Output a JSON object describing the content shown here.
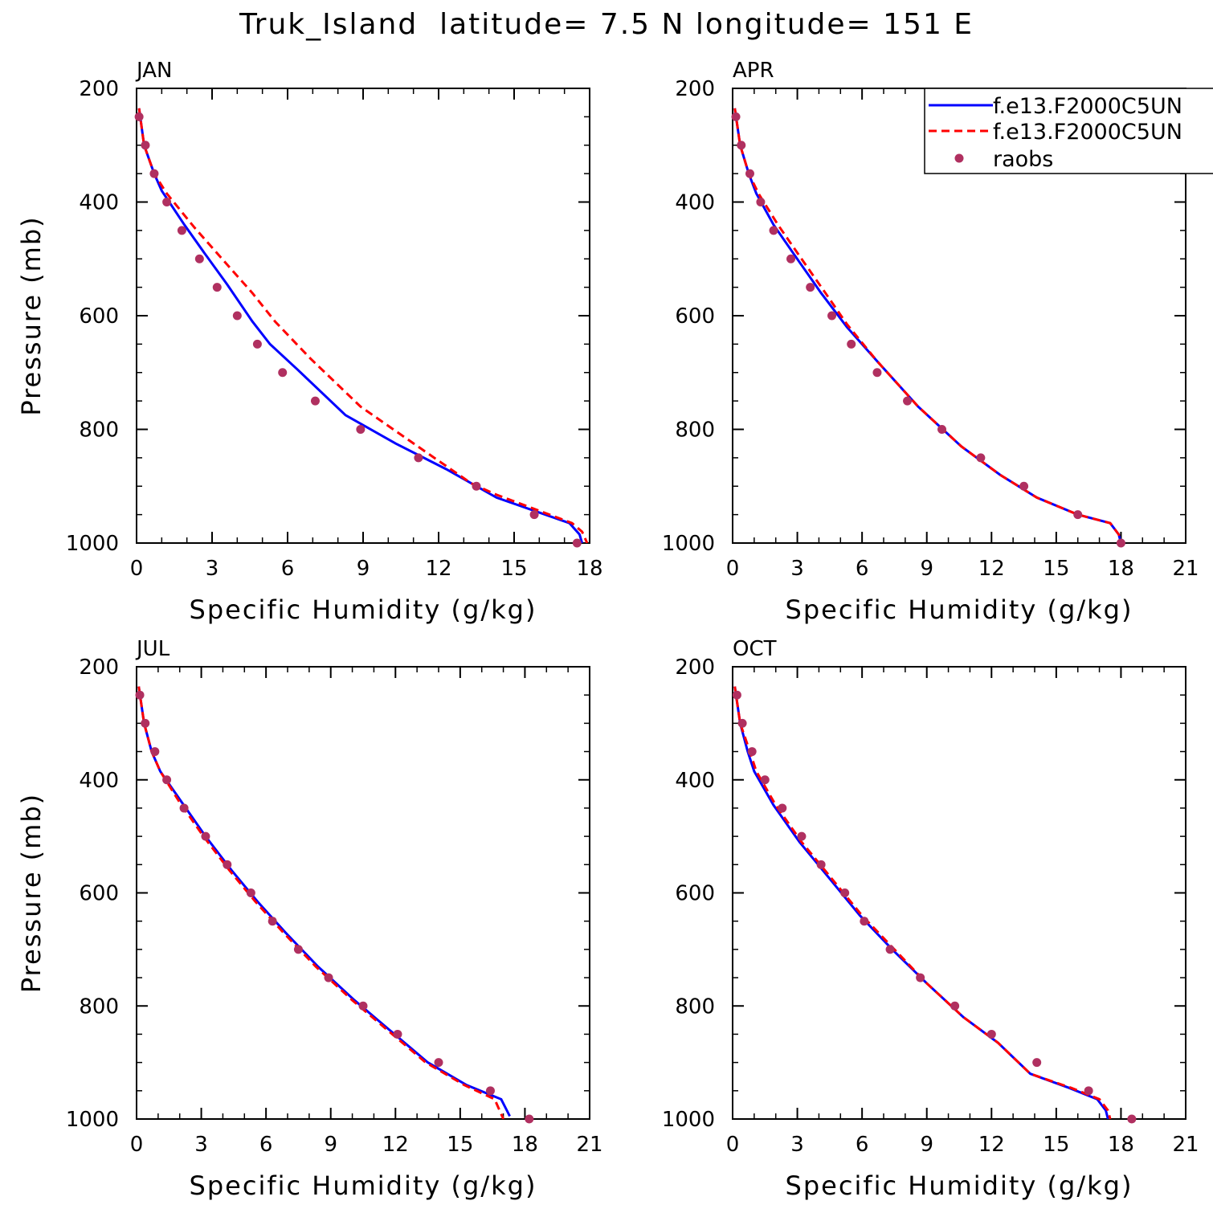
{
  "title": "Truk_Island  latitude= 7.5 N longitude= 151 E",
  "legend": [
    {
      "label": "f.e13.F2000C5UN",
      "color": "#0000ff",
      "style": "solid"
    },
    {
      "label": "f.e13.F2000C5UN",
      "color": "#ff0000",
      "style": "dashed"
    },
    {
      "label": "raobs",
      "color": "#b03060",
      "style": "marker"
    }
  ],
  "colors": {
    "model_solid": "#0000ff",
    "model_dashed": "#ff0000",
    "obs": "#b03060"
  },
  "chart_data": [
    {
      "type": "line",
      "panel": "JAN",
      "xlabel": "Specific Humidity (g/kg)",
      "ylabel": "Pressure (mb)",
      "xlim": [
        0,
        18
      ],
      "ylim": [
        1000,
        200
      ],
      "xticks": [
        0,
        3,
        6,
        9,
        12,
        15,
        18
      ],
      "yticks": [
        200,
        400,
        600,
        800,
        1000
      ],
      "series": [
        {
          "name": "f.e13.F2000C5UN",
          "style": "solid",
          "x": [
            0.1,
            0.3,
            0.7,
            1.0,
            1.9,
            2.7,
            3.6,
            4.6,
            5.3,
            6.4,
            8.3,
            10.3,
            12.3,
            14.3,
            17.2,
            17.6,
            17.7
          ],
          "y": [
            235,
            300,
            350,
            380,
            440,
            490,
            545,
            610,
            650,
            695,
            775,
            825,
            870,
            920,
            965,
            985,
            1000
          ]
        },
        {
          "name": "f.e13.F2000C5UN",
          "style": "dashed",
          "x": [
            0.1,
            0.3,
            0.7,
            1.2,
            2.3,
            3.7,
            4.6,
            5.5,
            6.9,
            8.9,
            11.5,
            13.3,
            14.3,
            17.3,
            17.7,
            17.9
          ],
          "y": [
            235,
            300,
            350,
            385,
            445,
            515,
            560,
            610,
            675,
            760,
            840,
            895,
            915,
            965,
            980,
            1000
          ]
        }
      ],
      "points": [
        {
          "name": "raobs",
          "x": [
            0.1,
            0.35,
            0.7,
            1.2,
            1.8,
            2.5,
            3.2,
            4.0,
            4.8,
            5.8,
            7.1,
            8.9,
            11.2,
            13.5,
            15.8,
            17.5
          ],
          "y": [
            250,
            300,
            350,
            400,
            450,
            500,
            550,
            600,
            650,
            700,
            750,
            800,
            850,
            900,
            950,
            1000
          ]
        }
      ]
    },
    {
      "type": "line",
      "panel": "APR",
      "xlabel": "Specific Humidity (g/kg)",
      "ylabel": "",
      "xlim": [
        0,
        21
      ],
      "ylim": [
        1000,
        200
      ],
      "xticks": [
        0,
        3,
        6,
        9,
        12,
        15,
        18,
        21
      ],
      "yticks": [
        200,
        400,
        600,
        800,
        1000
      ],
      "series": [
        {
          "name": "f.e13.F2000C5UN",
          "style": "solid",
          "x": [
            0.1,
            0.35,
            0.75,
            1.1,
            1.9,
            2.9,
            4.1,
            5.3,
            6.7,
            8.6,
            10.6,
            12.4,
            14.1,
            16.0,
            17.5,
            17.9,
            18.0
          ],
          "y": [
            235,
            300,
            350,
            385,
            440,
            495,
            560,
            620,
            680,
            760,
            830,
            880,
            920,
            950,
            965,
            985,
            1000
          ]
        },
        {
          "name": "f.e13.F2000C5UN",
          "style": "dashed",
          "x": [
            0.1,
            0.35,
            0.75,
            1.2,
            2.1,
            3.1,
            4.3,
            5.3,
            6.7,
            8.6,
            10.6,
            12.4,
            14.1,
            16.0,
            17.5,
            17.9,
            18.0
          ],
          "y": [
            235,
            300,
            350,
            385,
            440,
            495,
            560,
            615,
            680,
            760,
            830,
            880,
            920,
            950,
            965,
            985,
            1000
          ]
        }
      ],
      "points": [
        {
          "name": "raobs",
          "x": [
            0.15,
            0.4,
            0.8,
            1.3,
            1.9,
            2.7,
            3.6,
            4.6,
            5.5,
            6.7,
            8.1,
            9.7,
            11.5,
            13.5,
            16.0,
            18.0
          ],
          "y": [
            250,
            300,
            350,
            400,
            450,
            500,
            550,
            600,
            650,
            700,
            750,
            800,
            850,
            900,
            950,
            1000
          ]
        }
      ]
    },
    {
      "type": "line",
      "panel": "JUL",
      "xlabel": "Specific Humidity (g/kg)",
      "ylabel": "Pressure (mb)",
      "xlim": [
        0,
        21
      ],
      "ylim": [
        1000,
        200
      ],
      "xticks": [
        0,
        3,
        6,
        9,
        12,
        15,
        18,
        21
      ],
      "yticks": [
        200,
        400,
        600,
        800,
        1000
      ],
      "series": [
        {
          "name": "f.e13.F2000C5UN",
          "style": "solid",
          "x": [
            0.1,
            0.35,
            0.7,
            1.1,
            2.1,
            3.2,
            4.4,
            5.6,
            6.9,
            8.4,
            10.1,
            11.8,
            13.5,
            15.3,
            16.9,
            17.3
          ],
          "y": [
            235,
            300,
            350,
            385,
            440,
            500,
            560,
            615,
            670,
            730,
            790,
            845,
            900,
            940,
            965,
            995
          ]
        },
        {
          "name": "f.e13.F2000C5UN",
          "style": "dashed",
          "x": [
            0.1,
            0.35,
            0.7,
            1.1,
            2.0,
            3.1,
            4.3,
            5.5,
            6.8,
            8.3,
            10.0,
            11.7,
            13.4,
            15.2,
            16.6,
            17.0
          ],
          "y": [
            235,
            300,
            350,
            385,
            440,
            500,
            560,
            615,
            670,
            730,
            790,
            845,
            900,
            940,
            965,
            1000
          ]
        }
      ],
      "points": [
        {
          "name": "raobs",
          "x": [
            0.15,
            0.4,
            0.85,
            1.4,
            2.2,
            3.2,
            4.2,
            5.3,
            6.3,
            7.5,
            8.9,
            10.5,
            12.1,
            14.0,
            16.4,
            18.2
          ],
          "y": [
            250,
            300,
            350,
            400,
            450,
            500,
            550,
            600,
            650,
            700,
            750,
            800,
            850,
            900,
            950,
            1000
          ]
        }
      ]
    },
    {
      "type": "line",
      "panel": "OCT",
      "xlabel": "Specific Humidity (g/kg)",
      "ylabel": "",
      "xlim": [
        0,
        21
      ],
      "ylim": [
        1000,
        200
      ],
      "xticks": [
        0,
        3,
        6,
        9,
        12,
        15,
        18,
        21
      ],
      "yticks": [
        200,
        400,
        600,
        800,
        1000
      ],
      "series": [
        {
          "name": "f.e13.F2000C5UN",
          "style": "solid",
          "x": [
            0.1,
            0.35,
            0.7,
            1.0,
            1.9,
            3.1,
            4.5,
            5.9,
            7.4,
            9.0,
            10.7,
            12.3,
            13.8,
            15.6,
            16.9,
            17.3,
            17.4
          ],
          "y": [
            235,
            300,
            350,
            385,
            445,
            510,
            575,
            640,
            700,
            760,
            820,
            865,
            920,
            945,
            965,
            985,
            1000
          ]
        },
        {
          "name": "f.e13.F2000C5UN",
          "style": "dashed",
          "x": [
            0.1,
            0.35,
            0.8,
            1.1,
            2.0,
            3.2,
            4.6,
            6.0,
            7.5,
            9.0,
            10.7,
            12.3,
            13.8,
            15.7,
            17.0,
            17.4,
            17.5
          ],
          "y": [
            235,
            300,
            350,
            385,
            445,
            510,
            575,
            640,
            700,
            760,
            820,
            865,
            920,
            945,
            965,
            985,
            1000
          ]
        }
      ],
      "points": [
        {
          "name": "raobs",
          "x": [
            0.2,
            0.45,
            0.9,
            1.5,
            2.3,
            3.2,
            4.1,
            5.2,
            6.1,
            7.3,
            8.7,
            10.3,
            12.0,
            14.1,
            16.5,
            18.5
          ],
          "y": [
            250,
            300,
            350,
            400,
            450,
            500,
            550,
            600,
            650,
            700,
            750,
            800,
            850,
            900,
            950,
            1000
          ]
        }
      ]
    }
  ]
}
